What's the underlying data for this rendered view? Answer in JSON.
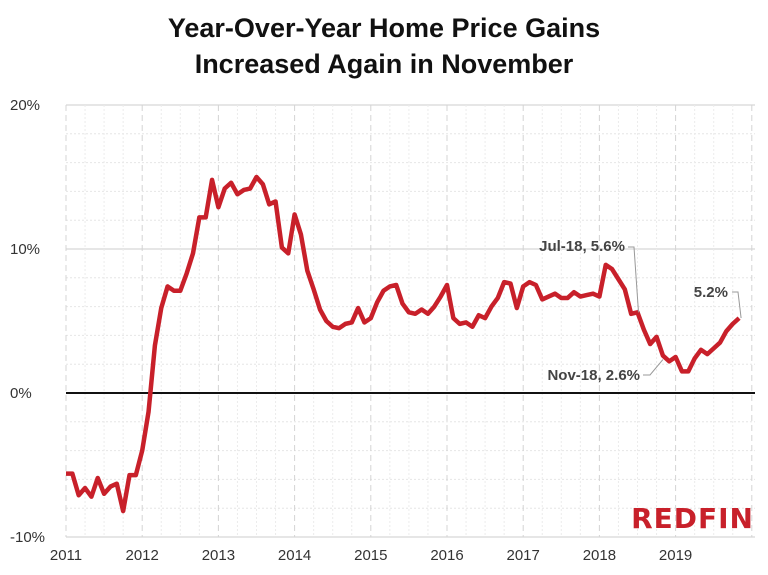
{
  "chart_data": {
    "type": "line",
    "title": "Year-Over-Year Home Price Gains Increased Again in November",
    "title_lines": [
      "Year-Over-Year Home Price Gains",
      "Increased Again in November"
    ],
    "xlabel": "",
    "ylabel": "",
    "x_ticks": [
      "2011",
      "2012",
      "2013",
      "2014",
      "2015",
      "2016",
      "2017",
      "2018",
      "2019"
    ],
    "y_ticks": [
      "20%",
      "10%",
      "0%",
      "-10%"
    ],
    "y_tick_values": [
      20,
      10,
      0,
      -10
    ],
    "ylim": [
      -10,
      20
    ],
    "xlim": [
      "2011-01",
      "2019-12"
    ],
    "grid": true,
    "line_color": "#c8202a",
    "series": [
      {
        "start": "2011-01",
        "frequency": "monthly",
        "values": [
          -5.6,
          -5.6,
          -7.1,
          -6.6,
          -7.2,
          -5.9,
          -7.0,
          -6.5,
          -6.3,
          -8.2,
          -5.7,
          -5.7,
          -4.0,
          -1.3,
          3.3,
          5.9,
          7.4,
          7.1,
          7.1,
          8.3,
          9.7,
          12.2,
          12.2,
          14.8,
          12.9,
          14.2,
          14.6,
          13.8,
          14.1,
          14.2,
          15.0,
          14.5,
          13.1,
          13.3,
          10.1,
          9.7,
          12.4,
          11.0,
          8.5,
          7.2,
          5.8,
          5.0,
          4.6,
          4.5,
          4.8,
          4.9,
          5.9,
          4.9,
          5.2,
          6.3,
          7.1,
          7.4,
          7.5,
          6.2,
          5.6,
          5.5,
          5.8,
          5.5,
          6.0,
          6.7,
          7.5,
          5.2,
          4.8,
          4.9,
          4.6,
          5.4,
          5.2,
          6.0,
          6.6,
          7.7,
          7.6,
          5.9,
          7.4,
          7.7,
          7.5,
          6.5,
          6.7,
          6.9,
          6.6,
          6.6,
          7.0,
          6.7,
          6.8,
          6.9,
          6.7,
          8.9,
          8.6,
          7.9,
          7.2,
          5.5,
          5.6,
          4.4,
          3.4,
          3.9,
          2.6,
          2.2,
          2.5,
          1.5,
          1.5,
          2.4,
          3.0,
          2.7,
          3.1,
          3.5,
          4.3,
          4.8,
          5.2
        ]
      }
    ],
    "annotations": [
      {
        "label": "Jul-18, 5.6%",
        "month": "2018-07",
        "value": 5.6
      },
      {
        "label": "Nov-18, 2.6%",
        "month": "2018-11",
        "value": 2.6
      },
      {
        "label": "5.2%",
        "month": "2019-11",
        "value": 5.2
      }
    ]
  },
  "logo": "REDFIN"
}
